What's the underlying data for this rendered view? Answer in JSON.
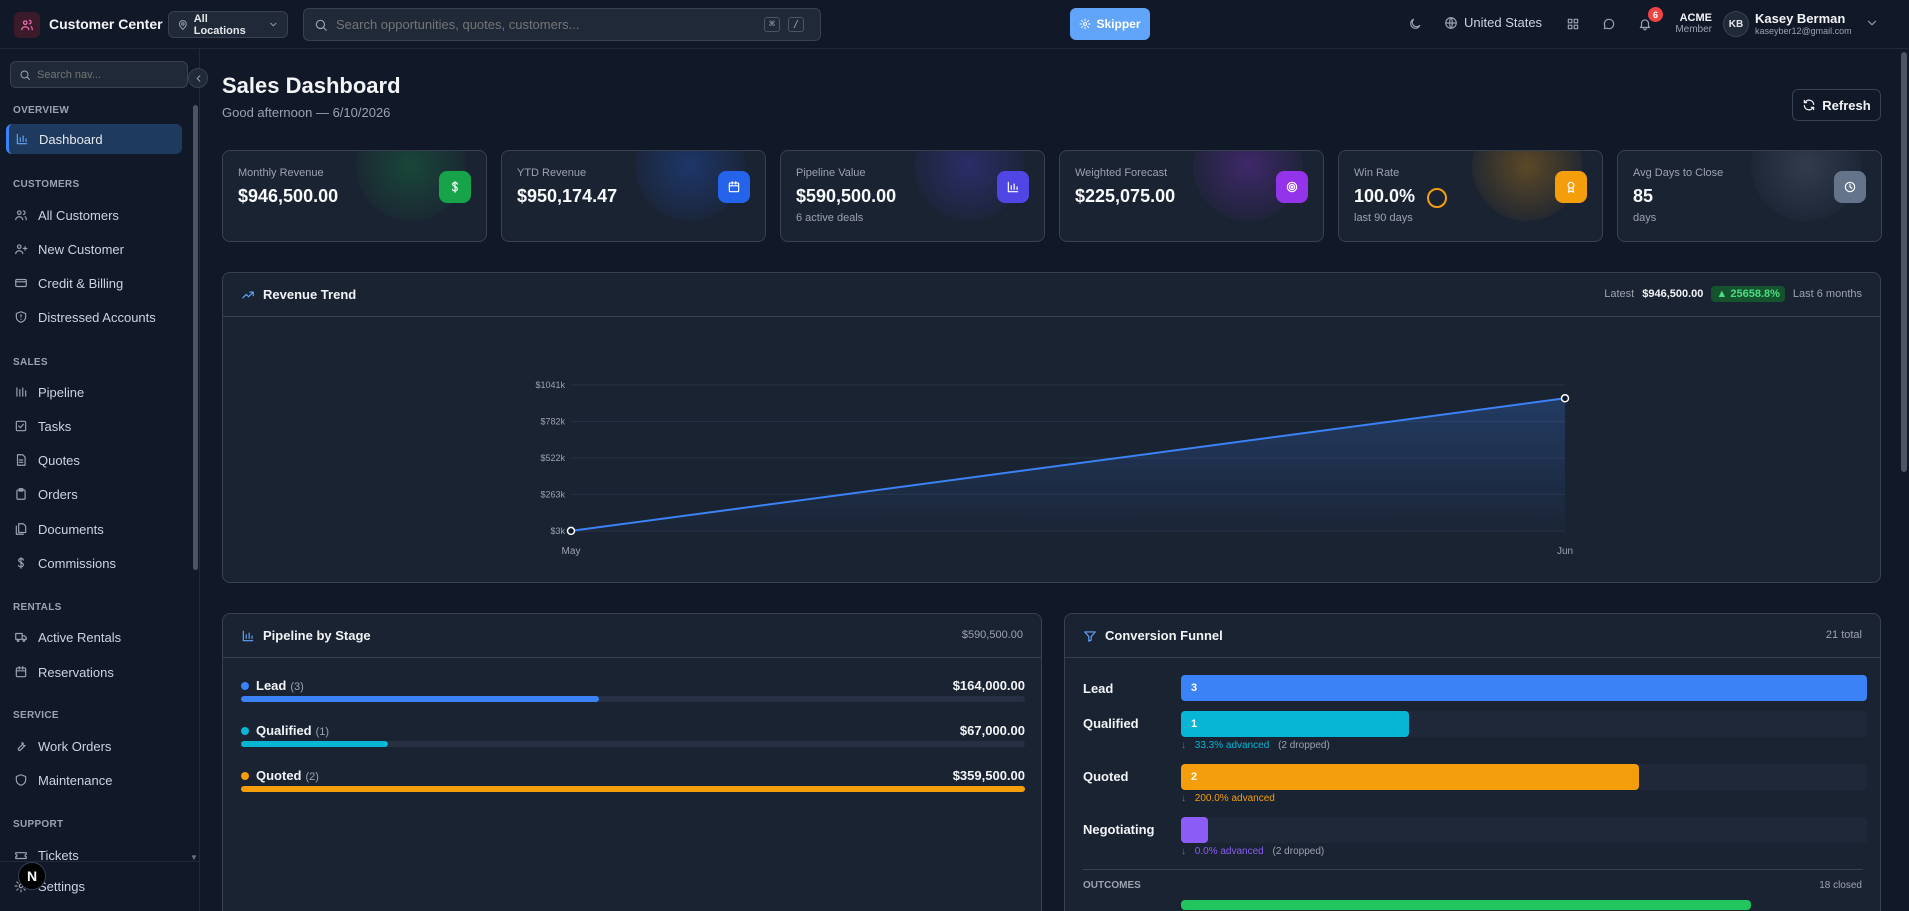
{
  "topbar": {
    "app_title": "Customer Center",
    "location_label": "All Locations",
    "search_placeholder": "Search opportunities, quotes, customers...",
    "kbd_cmd": "⌘",
    "kbd_slash": "/",
    "assistant_label": "Skipper",
    "country": "United States",
    "notification_count": "6",
    "org_name": "ACME",
    "org_role": "Member",
    "user_initials": "KB",
    "user_name": "Kasey Berman",
    "user_email": "kaseyber12@gmail.com"
  },
  "sidebar": {
    "search_placeholder": "Search nav...",
    "sections": {
      "overview": "OVERVIEW",
      "customers": "CUSTOMERS",
      "sales": "SALES",
      "rentals": "RENTALS",
      "service": "SERVICE",
      "support": "SUPPORT"
    },
    "items": {
      "dashboard": "Dashboard",
      "all_customers": "All Customers",
      "new_customer": "New Customer",
      "credit_billing": "Credit & Billing",
      "distressed": "Distressed Accounts",
      "pipeline": "Pipeline",
      "tasks": "Tasks",
      "quotes": "Quotes",
      "orders": "Orders",
      "documents": "Documents",
      "commissions": "Commissions",
      "active_rentals": "Active Rentals",
      "reservations": "Reservations",
      "work_orders": "Work Orders",
      "maintenance": "Maintenance",
      "tickets": "Tickets",
      "settings": "Settings"
    },
    "fab_label": "N"
  },
  "header": {
    "title": "Sales Dashboard",
    "subtitle": "Good afternoon — 6/10/2026",
    "refresh_label": "Refresh"
  },
  "kpis": [
    {
      "label": "Monthly Revenue",
      "value": "$946,500.00",
      "sub": "",
      "icon": "dollar-icon",
      "color": "#16a34a"
    },
    {
      "label": "YTD Revenue",
      "value": "$950,174.47",
      "sub": "",
      "icon": "calendar-icon",
      "color": "#2563eb"
    },
    {
      "label": "Pipeline Value",
      "value": "$590,500.00",
      "sub": "6 active deals",
      "icon": "bar-chart-icon",
      "color": "#4f46e5"
    },
    {
      "label": "Weighted Forecast",
      "value": "$225,075.00",
      "sub": "",
      "icon": "target-icon",
      "color": "#9333ea"
    },
    {
      "label": "Win Rate",
      "value": "100.0%",
      "sub": "last 90 days",
      "icon": "award-icon",
      "color": "#f59e0b"
    },
    {
      "label": "Avg Days to Close",
      "value": "85",
      "sub": "days",
      "icon": "clock-icon",
      "color": "#64748b"
    }
  ],
  "revenue_trend": {
    "title": "Revenue Trend",
    "latest_label": "Latest",
    "latest_value": "$946,500.00",
    "change": "▲ 25658.8%",
    "range_label": "Last 6 months"
  },
  "chart_data": {
    "type": "area",
    "title": "",
    "xlabel": "",
    "ylabel": "",
    "categories": [
      "May",
      "Jun"
    ],
    "values": [
      3674.47,
      946500
    ],
    "y_ticks": [
      "$3k",
      "$263k",
      "$522k",
      "$782k",
      "$1041k"
    ],
    "y_tick_values": [
      3000,
      263000,
      522000,
      782000,
      1041000
    ],
    "ylim": [
      3000,
      1041000
    ],
    "grid": true,
    "color": "#3b82f6"
  },
  "pipeline_by_stage": {
    "title": "Pipeline by Stage",
    "total": "$590,500.00",
    "stages": [
      {
        "name": "Lead",
        "count": "(3)",
        "amount": "$164,000.00",
        "fraction": 0.457,
        "color": "#3b82f6"
      },
      {
        "name": "Qualified",
        "count": "(1)",
        "amount": "$67,000.00",
        "fraction": 0.187,
        "color": "#06b6d4"
      },
      {
        "name": "Quoted",
        "count": "(2)",
        "amount": "$359,500.00",
        "fraction": 1.0,
        "color": "#f59e0b"
      }
    ]
  },
  "conversion_funnel": {
    "title": "Conversion Funnel",
    "total": "21 total",
    "stages": [
      {
        "name": "Lead",
        "value": "3",
        "fraction": 1.0,
        "color": "#3b82f6",
        "advanced": "",
        "dropped": ""
      },
      {
        "name": "Qualified",
        "value": "1",
        "fraction": 0.333,
        "color": "#06b6d4",
        "advanced": "33.3% advanced",
        "dropped": "(2 dropped)"
      },
      {
        "name": "Quoted",
        "value": "2",
        "fraction": 0.667,
        "color": "#f59e0b",
        "advanced": "200.0% advanced",
        "dropped": ""
      },
      {
        "name": "Negotiating",
        "value": "",
        "fraction": 0.04,
        "color": "#8b5cf6",
        "advanced": "0.0% advanced",
        "dropped": "(2 dropped)"
      }
    ],
    "outcomes_label": "OUTCOMES",
    "outcomes_total": "18 closed"
  }
}
